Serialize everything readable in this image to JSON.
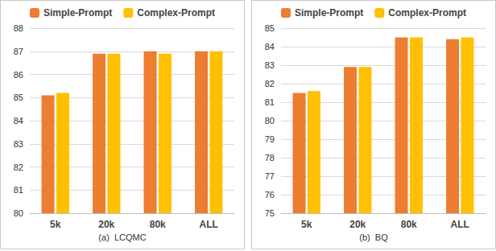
{
  "chart_data": [
    {
      "type": "bar",
      "title": "(a)  LCQMC",
      "categories": [
        "5k",
        "20k",
        "80k",
        "ALL"
      ],
      "series": [
        {
          "name": "Simple-Prompt",
          "color": "#ed7d31",
          "values": [
            85.1,
            86.9,
            87.0,
            87.0
          ]
        },
        {
          "name": "Complex-Prompt",
          "color": "#ffc000",
          "values": [
            85.2,
            86.9,
            86.9,
            87.0
          ]
        }
      ],
      "ylim": [
        80,
        88
      ],
      "yticks": [
        80,
        81,
        82,
        83,
        84,
        85,
        86,
        87,
        88
      ],
      "grid": true,
      "legend": "top"
    },
    {
      "type": "bar",
      "title": "(b)  BQ",
      "categories": [
        "5k",
        "20k",
        "80k",
        "ALL"
      ],
      "series": [
        {
          "name": "Simple-Prompt",
          "color": "#ed7d31",
          "values": [
            81.5,
            82.9,
            84.5,
            84.4
          ]
        },
        {
          "name": "Complex-Prompt",
          "color": "#ffc000",
          "values": [
            81.6,
            82.9,
            84.5,
            84.5
          ]
        }
      ],
      "ylim": [
        75,
        85
      ],
      "yticks": [
        75,
        76,
        77,
        78,
        79,
        80,
        81,
        82,
        83,
        84,
        85
      ],
      "grid": true,
      "legend": "top"
    }
  ]
}
